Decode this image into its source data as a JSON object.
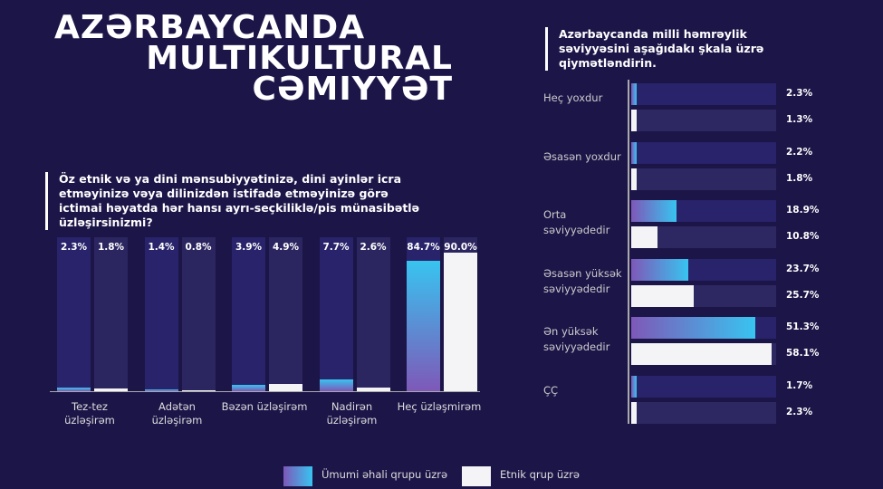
{
  "title": [
    "AZƏRBAYCANDA",
    "MULTIKULTURAL",
    "CƏMIYYƏT"
  ],
  "colors": {
    "background": "#1c1548",
    "general": "#38c4f0",
    "ethnic": "#f4f4f6"
  },
  "legend": {
    "general": "Ümumi əhali qrupu üzrə",
    "ethnic": "Etnik qrup üzrə"
  },
  "chart_data": [
    {
      "type": "bar",
      "title": "Öz etnik və ya dini mənsubiyyətinizə, dini ayinlər icra etməyinizə vəya dilinizdən istifadə etməyinizə görə ictimai həyatda hər hansı ayrı-seçkiliklə/pis münasibətlə üzləşirsinizmi?",
      "categories": [
        "Tez-tez üzləşirəm",
        "Adətən üzləşirəm",
        "Bəzən üzləşirəm",
        "Nadirən üzləşirəm",
        "Heç üzləşmirəm"
      ],
      "series": [
        {
          "name": "Ümumi əhali qrupu üzrə",
          "values": [
            2.3,
            1.4,
            3.9,
            7.7,
            84.7
          ]
        },
        {
          "name": "Etnik qrup üzrə",
          "values": [
            1.8,
            0.8,
            4.9,
            2.6,
            90.0
          ]
        }
      ],
      "labels": [
        [
          "2.3%",
          "1.8%"
        ],
        [
          "1.4%",
          "0.8%"
        ],
        [
          "3.9%",
          "4.9%"
        ],
        [
          "7.7%",
          "2.6%"
        ],
        [
          "84.7%",
          "90.0%"
        ]
      ],
      "ylim": [
        0,
        100
      ]
    },
    {
      "type": "bar",
      "orientation": "horizontal",
      "title": "Azərbaycanda milli həmrəylik səviyyəsini aşağıdakı şkala üzrə qiymətləndirin.",
      "categories": [
        "Heç yoxdur",
        "Əsasən yoxdur",
        "Orta səviyyədedir",
        "Əsasən yüksək səviyyədedir",
        "Ən yüksək səviyyədedir",
        "ÇÇ"
      ],
      "series": [
        {
          "name": "Ümumi əhali qrupu üzrə",
          "values": [
            2.3,
            2.2,
            18.9,
            23.7,
            51.3,
            1.7
          ]
        },
        {
          "name": "Etnik qrup üzrə",
          "values": [
            1.3,
            1.8,
            10.8,
            25.7,
            58.1,
            2.3
          ]
        }
      ],
      "labels": [
        [
          "2.3%",
          "1.3%"
        ],
        [
          "2.2%",
          "1.8%"
        ],
        [
          "18.9%",
          "10.8%"
        ],
        [
          "23.7%",
          "25.7%"
        ],
        [
          "51.3%",
          "58.1%"
        ],
        [
          "1.7%",
          "2.3%"
        ]
      ],
      "xlim": [
        0,
        60
      ]
    }
  ]
}
